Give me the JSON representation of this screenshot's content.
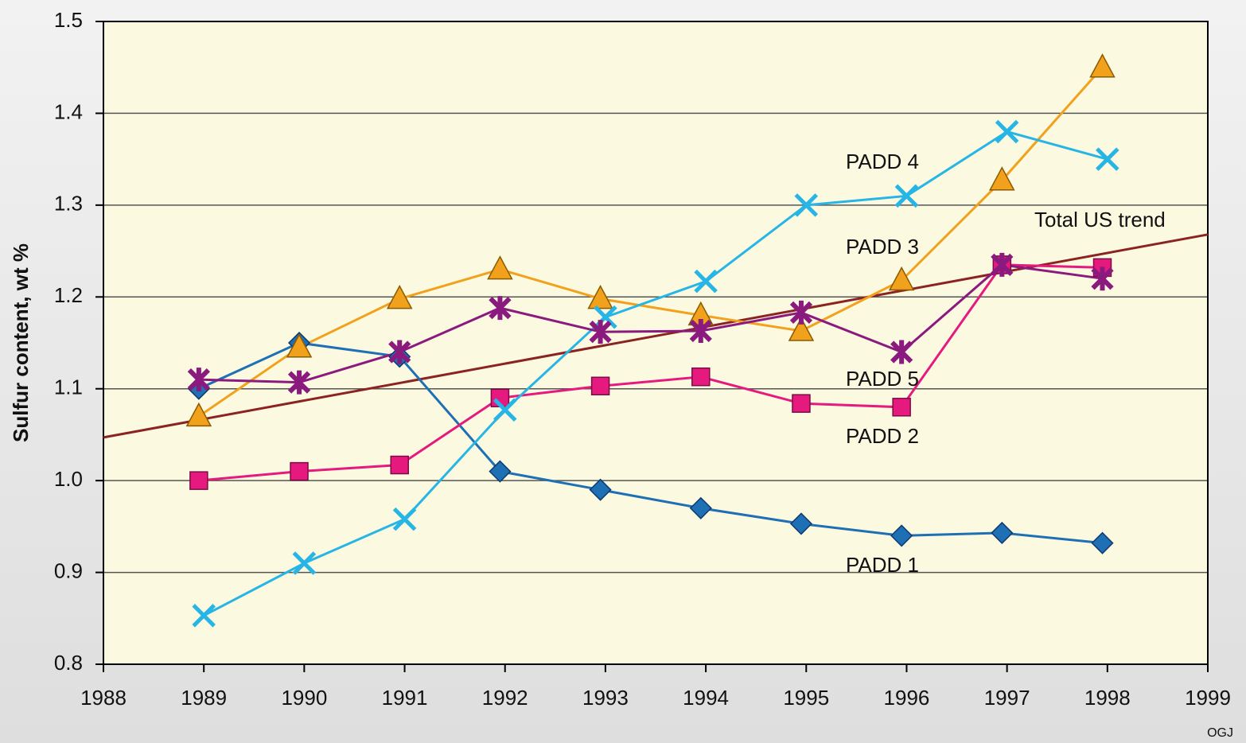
{
  "chart_data": {
    "type": "line",
    "y_label": "Sulfur content, wt %",
    "source": "OGJ",
    "x": [
      1988.95,
      1989.95,
      1990.95,
      1991.95,
      1992.95,
      1993.95,
      1994.95,
      1995.95,
      1996.95,
      1997.95
    ],
    "series": [
      {
        "name": "PADD 1",
        "color": "#1f6fb5",
        "marker": "diamond",
        "values": [
          1.1,
          1.15,
          1.135,
          1.01,
          0.99,
          0.97,
          0.953,
          0.94,
          0.943,
          0.932
        ]
      },
      {
        "name": "PADD 2",
        "color": "#e6197f",
        "marker": "square",
        "values": [
          1.0,
          1.01,
          1.017,
          1.09,
          1.103,
          1.113,
          1.084,
          1.08,
          1.235,
          1.232
        ]
      },
      {
        "name": "PADD 3",
        "color": "#f2a11c",
        "marker": "triangle",
        "values": [
          1.07,
          1.145,
          1.198,
          1.23,
          1.198,
          1.18,
          1.163,
          1.218,
          1.327,
          1.45
        ]
      },
      {
        "name": "PADD 4",
        "color": "#27b5e6",
        "marker": "x",
        "x": [
          1989,
          1990,
          1991,
          1992,
          1993,
          1994,
          1995,
          1996,
          1997,
          1998
        ],
        "values": [
          0.853,
          0.91,
          0.958,
          1.077,
          1.178,
          1.217,
          1.3,
          1.31,
          1.38,
          1.35
        ]
      },
      {
        "name": "PADD 5",
        "color": "#8b1a7f",
        "marker": "asterisk",
        "values": [
          1.11,
          1.107,
          1.14,
          1.188,
          1.162,
          1.163,
          1.183,
          1.14,
          1.235,
          1.22
        ]
      },
      {
        "name": "Total US trend",
        "color": "#8b2323",
        "marker": "none",
        "x": [
          1988,
          1999
        ],
        "values": [
          1.047,
          1.268
        ]
      }
    ],
    "xlim": [
      1988,
      1999
    ],
    "xticks": [
      1988,
      1989,
      1990,
      1991,
      1992,
      1993,
      1994,
      1995,
      1996,
      1997,
      1998,
      1999
    ],
    "ylim": [
      0.8,
      1.5
    ],
    "yticks": [
      0.8,
      0.9,
      {
        "value": 1.0,
        "label": "1.0"
      },
      1.1,
      1.2,
      1.3,
      1.4,
      1.5
    ],
    "grid": true
  }
}
